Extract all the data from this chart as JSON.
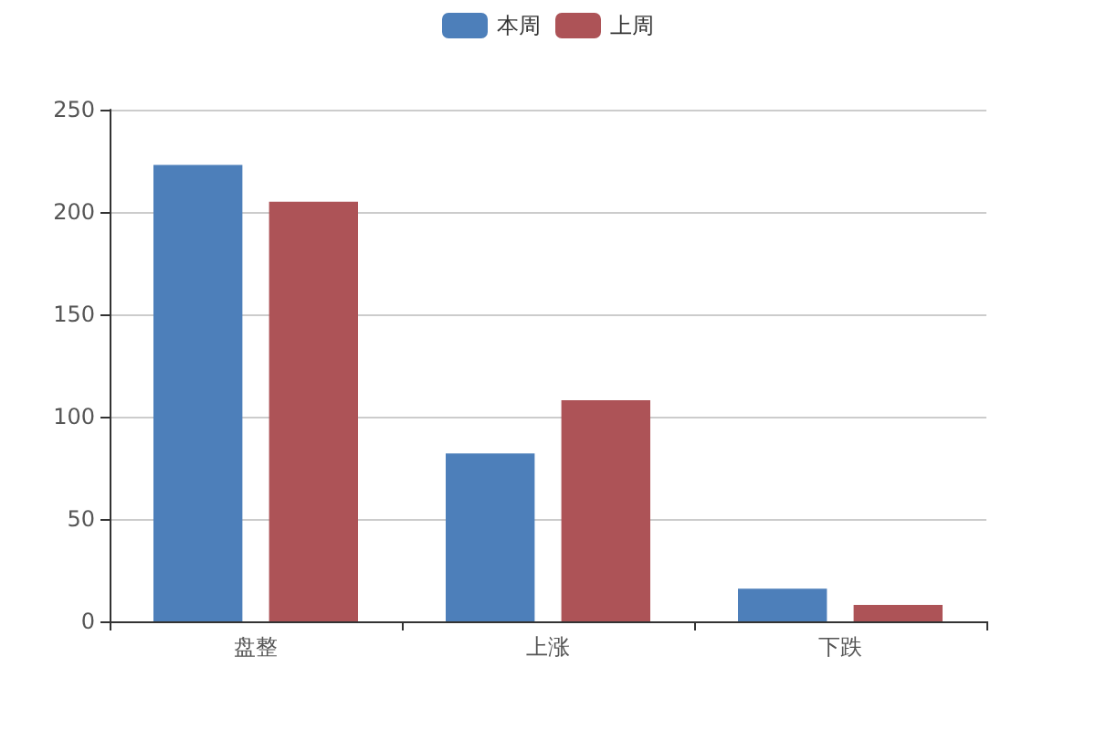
{
  "chart_data": {
    "type": "bar",
    "categories": [
      "盘整",
      "上涨",
      "下跌"
    ],
    "series": [
      {
        "name": "本周",
        "color": "#4d7fba",
        "values": [
          223,
          82,
          16
        ]
      },
      {
        "name": "上周",
        "color": "#ad5357",
        "values": [
          205,
          108,
          8
        ]
      }
    ],
    "ylim": [
      0,
      250
    ],
    "yticks": [
      0,
      50,
      100,
      150,
      200,
      250
    ],
    "grid": "y",
    "legend": "top"
  }
}
